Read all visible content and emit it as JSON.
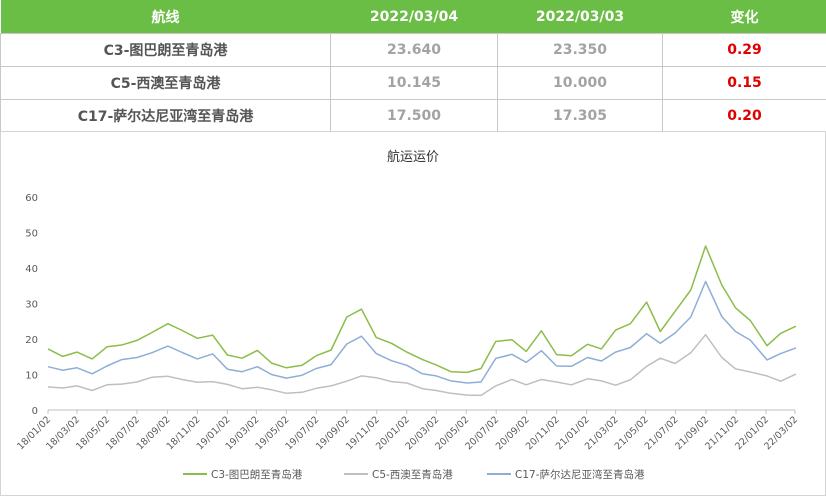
{
  "table": {
    "headers": [
      "航线",
      "2022/03/04",
      "2022/03/03",
      "变化"
    ],
    "rows": [
      {
        "route": "C3-图巴朗至青岛港",
        "today": "23.640",
        "yesterday": "23.350",
        "change": "0.29"
      },
      {
        "route": "C5-西澳至青岛港",
        "today": "10.145",
        "yesterday": "10.000",
        "change": "0.15"
      },
      {
        "route": "C17-萨尔达尼亚湾至青岛港",
        "today": "17.500",
        "yesterday": "17.305",
        "change": "0.20"
      }
    ],
    "colors": {
      "header_bg": "#6bbe45",
      "header_text": "#ffffff",
      "change_text": "#e00000",
      "value_text": "#a3a3a3",
      "route_text": "#555555"
    }
  },
  "chart_data": {
    "type": "line",
    "title": "航运运价",
    "xlabel": "",
    "ylabel": "",
    "ylim": [
      0,
      60
    ],
    "yticks": [
      0,
      10,
      20,
      30,
      40,
      50,
      60
    ],
    "grid": false,
    "legend_position": "bottom",
    "x_ticks": [
      "18/01/02",
      "18/03/02",
      "18/05/02",
      "18/07/02",
      "18/09/02",
      "18/11/02",
      "19/01/02",
      "19/03/02",
      "19/05/02",
      "19/07/02",
      "19/09/02",
      "19/11/02",
      "20/01/02",
      "20/03/02",
      "20/05/02",
      "20/07/02",
      "20/09/02",
      "20/11/02",
      "21/01/02",
      "21/03/02",
      "21/05/02",
      "21/07/02",
      "21/09/02",
      "21/11/02",
      "22/01/02",
      "22/03/02"
    ],
    "x_dates": [
      "18/01/02",
      "18/02/01",
      "18/03/02",
      "18/04/02",
      "18/05/02",
      "18/06/01",
      "18/07/02",
      "18/08/01",
      "18/09/03",
      "18/10/02",
      "18/11/02",
      "18/12/03",
      "19/01/02",
      "19/02/01",
      "19/03/04",
      "19/04/02",
      "19/05/02",
      "19/06/03",
      "19/07/02",
      "19/08/01",
      "19/09/02",
      "19/10/02",
      "19/11/01",
      "19/12/02",
      "20/01/02",
      "20/02/03",
      "20/03/02",
      "20/04/01",
      "20/05/04",
      "20/06/01",
      "20/07/01",
      "20/08/03",
      "20/09/01",
      "20/10/02",
      "20/11/02",
      "20/12/02",
      "21/01/04",
      "21/02/01",
      "21/03/02",
      "21/04/01",
      "21/05/04",
      "21/06/01",
      "21/07/01",
      "21/08/02",
      "21/09/01",
      "21/10/04",
      "21/11/01",
      "21/12/01",
      "22/01/04",
      "22/02/01",
      "22/03/04"
    ],
    "series": [
      {
        "name": "C3-图巴朗至青岛港",
        "color": "#8cbd4a",
        "values": [
          17.2,
          15.1,
          16.3,
          14.4,
          17.8,
          18.3,
          19.6,
          21.8,
          24.3,
          22.4,
          20.2,
          21.1,
          15.5,
          14.6,
          16.8,
          13.2,
          11.9,
          12.6,
          15.3,
          16.9,
          26.2,
          28.4,
          20.4,
          18.8,
          16.3,
          14.2,
          12.7,
          10.8,
          10.6,
          11.7,
          19.3,
          19.8,
          16.5,
          22.3,
          15.6,
          15.3,
          18.5,
          17.2,
          22.5,
          24.3,
          30.4,
          22.1,
          27.8,
          33.8,
          46.2,
          35.2,
          28.8,
          25.2,
          18.1,
          21.6,
          23.6
        ]
      },
      {
        "name": "C5-西澳至青岛港",
        "color": "#bfbfbf",
        "values": [
          6.5,
          6.2,
          6.8,
          5.5,
          7.1,
          7.3,
          7.9,
          9.2,
          9.5,
          8.6,
          7.8,
          8.0,
          7.2,
          6.0,
          6.4,
          5.7,
          4.7,
          5.0,
          6.1,
          6.8,
          8.1,
          9.6,
          9.1,
          8.0,
          7.6,
          6.0,
          5.5,
          4.7,
          4.2,
          4.1,
          6.8,
          8.6,
          7.1,
          8.6,
          7.9,
          7.1,
          8.8,
          8.2,
          7.0,
          8.5,
          12.3,
          14.6,
          13.1,
          16.1,
          21.2,
          14.8,
          11.6,
          10.7,
          9.6,
          8.1,
          10.1
        ]
      },
      {
        "name": "C17-萨尔达尼亚湾至青岛港",
        "color": "#8eaed6",
        "values": [
          12.2,
          11.2,
          11.9,
          10.2,
          12.4,
          14.2,
          14.8,
          16.1,
          18.0,
          16.2,
          14.4,
          15.8,
          11.5,
          10.8,
          12.2,
          10.0,
          9.0,
          9.8,
          11.7,
          12.8,
          18.6,
          20.8,
          15.9,
          13.9,
          12.6,
          10.2,
          9.6,
          8.2,
          7.6,
          7.9,
          14.5,
          15.7,
          13.4,
          16.7,
          12.4,
          12.3,
          14.8,
          13.8,
          16.3,
          17.6,
          21.5,
          18.8,
          21.7,
          26.2,
          36.2,
          26.3,
          22.1,
          19.7,
          14.1,
          15.9,
          17.5
        ]
      }
    ]
  }
}
